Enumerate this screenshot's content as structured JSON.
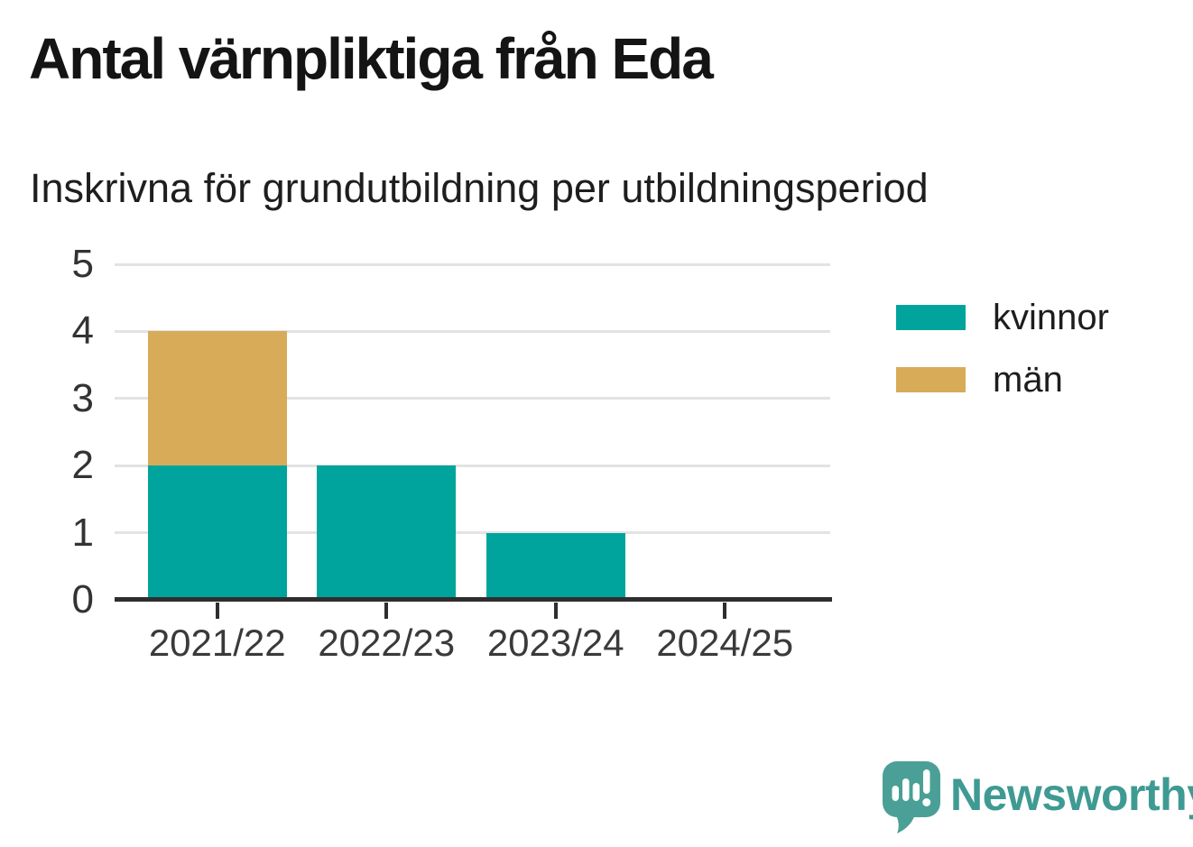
{
  "title": "Antal värnpliktiga från Eda",
  "subtitle": "Inskrivna för grundutbildning per utbildningsperiod",
  "chart_data": {
    "type": "bar",
    "stacked": true,
    "title": "Antal värnpliktiga från Eda",
    "subtitle": "Inskrivna för grundutbildning per utbildningsperiod",
    "categories": [
      "2021/22",
      "2022/23",
      "2023/24",
      "2024/25"
    ],
    "series": [
      {
        "name": "kvinnor",
        "color": "#00a49c",
        "values": [
          2,
          2,
          1,
          0
        ]
      },
      {
        "name": "män",
        "color": "#d8ab58",
        "values": [
          2,
          0,
          0,
          0
        ]
      }
    ],
    "xlabel": "",
    "ylabel": "",
    "ylim": [
      0,
      5
    ],
    "yticks": [
      0,
      1,
      2,
      3,
      4,
      5
    ],
    "grid": true,
    "legend_position": "right"
  },
  "colors": {
    "kvinnor": "#00a49c",
    "man": "#d8ab58",
    "axis": "#2e2e2e",
    "gridline": "#e3e3e3",
    "logo": "#3f9a93",
    "logo_mark": "#4aa096"
  },
  "branding": {
    "logo_text": "Newsworthy",
    "logo_icon": "speech-bubble-bar-chart-icon"
  }
}
